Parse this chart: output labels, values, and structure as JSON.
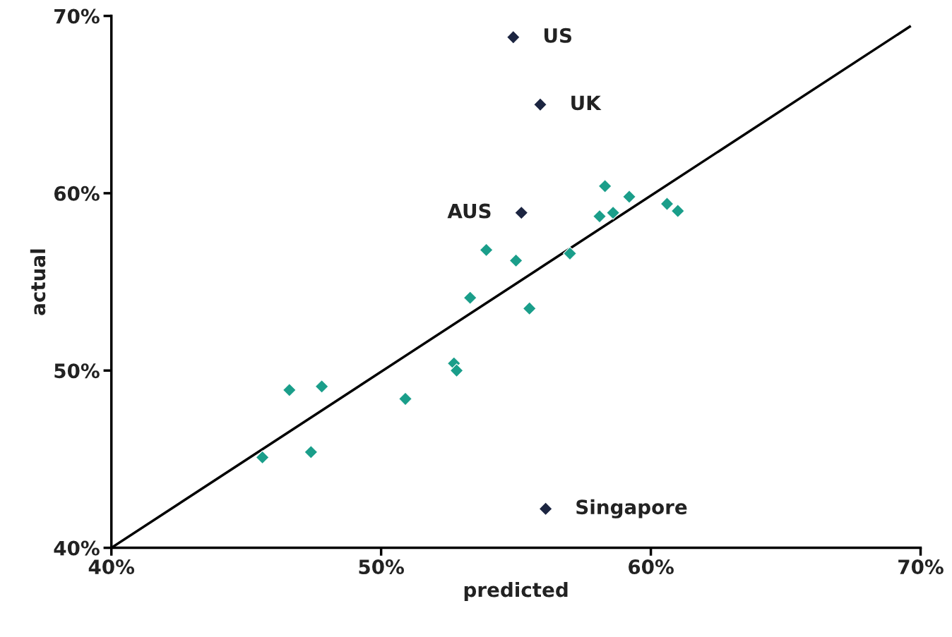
{
  "chart_data": {
    "type": "scatter",
    "xlabel": "predicted",
    "ylabel": "actual",
    "xlim": [
      40,
      70
    ],
    "ylim": [
      40,
      70
    ],
    "xticks": [
      {
        "value": 40,
        "label": "40%"
      },
      {
        "value": 50,
        "label": "50%"
      },
      {
        "value": 60,
        "label": "60%"
      },
      {
        "value": 70,
        "label": "70%"
      }
    ],
    "yticks": [
      {
        "value": 40,
        "label": "40%"
      },
      {
        "value": 50,
        "label": "50%"
      },
      {
        "value": 60,
        "label": "60%"
      },
      {
        "value": 70,
        "label": "70%"
      }
    ],
    "marker": "diamond",
    "grid": false,
    "legend": false,
    "series": [
      {
        "color": "#1a9e8a",
        "x": [
          45.6,
          46.6,
          47.4,
          47.8,
          50.9,
          52.7,
          52.8,
          53.3,
          53.9,
          55.0,
          55.5,
          57.0,
          58.1,
          58.3,
          58.6,
          59.2,
          60.6,
          61.0
        ],
        "values": [
          45.1,
          48.9,
          45.4,
          49.1,
          48.4,
          50.4,
          50.0,
          54.1,
          56.8,
          56.2,
          53.5,
          56.6,
          58.7,
          60.4,
          58.9,
          59.8,
          59.4,
          59.0
        ]
      },
      {
        "color": "#1c2541",
        "x": [
          54.9,
          55.9,
          55.2,
          56.1
        ],
        "values": [
          68.8,
          65.0,
          58.9,
          42.2
        ]
      },
      {
        "type": "line",
        "color": "#000000",
        "marker": "none",
        "x": [
          40,
          69.6
        ],
        "values": [
          40,
          69.4
        ]
      }
    ],
    "annotations": [
      {
        "text": "US",
        "x": 54.9,
        "y": 68.8
      },
      {
        "text": "UK",
        "x": 55.9,
        "y": 65.0
      },
      {
        "text": "AUS",
        "x": 55.2,
        "y": 58.9
      },
      {
        "text": "Singapore",
        "x": 56.1,
        "y": 42.2
      }
    ]
  }
}
